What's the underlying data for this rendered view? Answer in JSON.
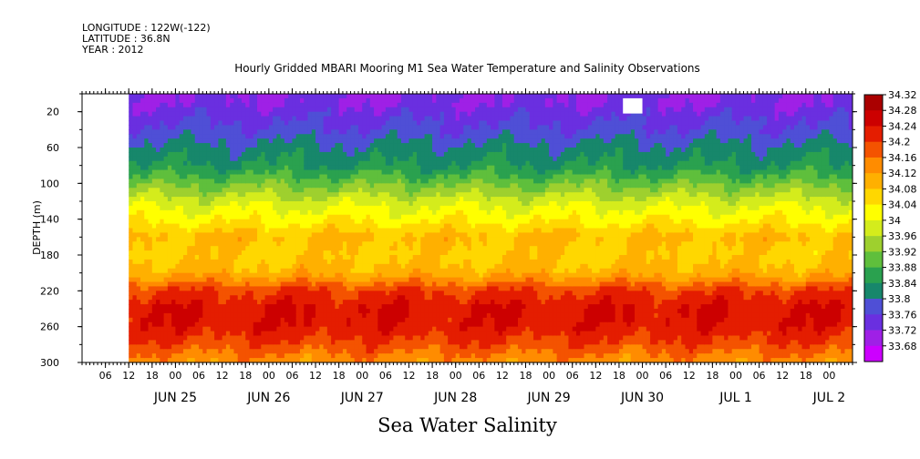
{
  "header": {
    "longitude": "LONGITUDE : 122W(-122)",
    "latitude": "LATITUDE : 36.8N",
    "year": "YEAR : 2012"
  },
  "chart_data": {
    "type": "heatmap",
    "title": "Hourly Gridded MBARI Mooring M1 Sea Water Temperature and Salinity Observations",
    "xlabel": "Sea Water Salinity",
    "ylabel": "DEPTH (m)",
    "x_range": [
      "2012-06-24 00:00",
      "2012-07-02 06:00"
    ],
    "data_start": "2012-06-24 12:00",
    "y_range": [
      0,
      300
    ],
    "y_ticks": [
      20,
      60,
      100,
      140,
      180,
      220,
      260,
      300
    ],
    "x_hour_ticks": [
      "06",
      "12",
      "18",
      "00",
      "06",
      "12",
      "18",
      "00",
      "06",
      "12",
      "18",
      "00",
      "06",
      "12",
      "18",
      "00",
      "06",
      "12",
      "18",
      "00",
      "06",
      "12",
      "18",
      "00",
      "06",
      "12",
      "18",
      "00",
      "06",
      "12",
      "18",
      "00"
    ],
    "x_day_ticks": [
      "JUN 25",
      "JUN 26",
      "JUN 27",
      "JUN 28",
      "JUN 29",
      "JUN 30",
      "JUL  1",
      "JUL  2"
    ],
    "colorbar_levels": [
      34.32,
      34.28,
      34.24,
      34.2,
      34.16,
      34.12,
      34.08,
      34.04,
      34,
      33.96,
      33.92,
      33.88,
      33.84,
      33.8,
      33.76,
      33.72,
      33.68
    ],
    "colorbar_colors": [
      "#aa0000",
      "#cc0000",
      "#e41d00",
      "#f45300",
      "#ff8c00",
      "#ffb000",
      "#ffd700",
      "#ffff00",
      "#d4ec1c",
      "#9ed02e",
      "#5fbf3c",
      "#2aa14f",
      "#17876b",
      "#4f4fd6",
      "#6a2fe0",
      "#9f20e6",
      "#cc00ff"
    ],
    "profile": [
      {
        "depth": 10,
        "value": 33.76
      },
      {
        "depth": 20,
        "value": 33.78
      },
      {
        "depth": 40,
        "value": 33.81
      },
      {
        "depth": 60,
        "value": 33.85
      },
      {
        "depth": 80,
        "value": 33.88
      },
      {
        "depth": 100,
        "value": 33.95
      },
      {
        "depth": 120,
        "value": 34.02
      },
      {
        "depth": 140,
        "value": 34.07
      },
      {
        "depth": 160,
        "value": 34.13
      },
      {
        "depth": 180,
        "value": 34.11
      },
      {
        "depth": 200,
        "value": 34.14
      },
      {
        "depth": 220,
        "value": 34.24
      },
      {
        "depth": 240,
        "value": 34.28
      },
      {
        "depth": 260,
        "value": 34.27
      },
      {
        "depth": 280,
        "value": 34.23
      },
      {
        "depth": 300,
        "value": 34.17
      }
    ],
    "missing": [
      {
        "from": "2012-06-29 19:00",
        "to": "2012-06-30 00:00",
        "depth_from": 5,
        "depth_to": 22
      }
    ],
    "grid": false
  }
}
